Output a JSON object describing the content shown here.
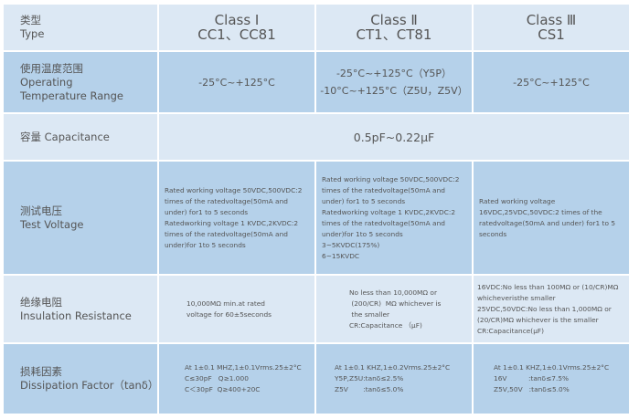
{
  "header": {
    "label_cn": "类型",
    "label_en": "Type",
    "cols": [
      {
        "class": "Class Ⅰ",
        "codes": "CC1、CC81"
      },
      {
        "class": "Class Ⅱ",
        "codes": "CT1、CT81"
      },
      {
        "class": "Class Ⅲ",
        "codes": "CS1"
      }
    ]
  },
  "temp": {
    "label_cn": "使用温度范围",
    "label_en1": "Operating",
    "label_en2": "Temperature Range",
    "c1": "-25°C~+125°C",
    "c2a": "-25°C~+125°C（Y5P）",
    "c2b": "-10°C~+125°C（Z5U，Z5V）",
    "c3": "-25°C~+125°C"
  },
  "cap": {
    "label": "容量 Capacitance",
    "value": "0.5pF~0.22μF"
  },
  "test": {
    "label_cn": "测试电压",
    "label_en": "Test Voltage",
    "c1": "Rated working voltage 50VDC,500VDC:2 times of the ratedvoltage(50mA and under) for1 to 5 seconds\nRatedworking voltage 1 KVDC,2KVDC:2 times of the ratedvoltage(50mA and under)for 1to 5 seconds",
    "c2": "Rated working voltage 50VDC,500VDC:2 times of the ratedvoltage(50mA and under) for1 to 5 seconds\nRatedworking voltage 1 KVDC,2KVDC:2 times of the ratedvoltage(50mA and under)for 1to 5 seconds\n3~5KVDC(175%)\n6~15KVDC",
    "c3": "Rated working voltage 16VDC,25VDC,50VDC:2 times of the ratedvoltage(50mA and under) for1 to 5 seconds"
  },
  "ins": {
    "label_cn": "绝缘电阻",
    "label_en": "Insulation Resistance",
    "c1": "10,000MΩ min.at rated\nvoltage for 60±5seconds",
    "c2": "No less than 10,000MΩ or\n (200/CR)  MΩ whichever is\n the smaller\nCR:Capacitance （μF)",
    "c3": "16VDC:No less than 100MΩ or (10/CR)MΩ whicheveristhe smaller\n25VDC,50VDC:No less than 1,000MΩ or (20/CR)MΩ whichever is the smaller\nCR:Capacitance(μF)"
  },
  "df": {
    "label_cn": "损耗因素",
    "label_en": "Dissipation Factor（tanδ）",
    "c1": "At 1±0.1 MHZ,1±0.1Vrms.25±2°C\nC≤30pF   Q≥1.000\nC＜30pF  Q≥400+20C",
    "c2": "At 1±0.1 KHZ,1±0.2Vrms.25±2°C\nY5P,Z5U:tanδ≤2.5%\nZ5V       :tanδ≤5.0%",
    "c3": "At 1±0.1 KHZ,1±0.1Vrms.25±2°C\n16V          :tanδ≤7.5%\nZ5V,50V   :tanδ≤5.0%"
  }
}
